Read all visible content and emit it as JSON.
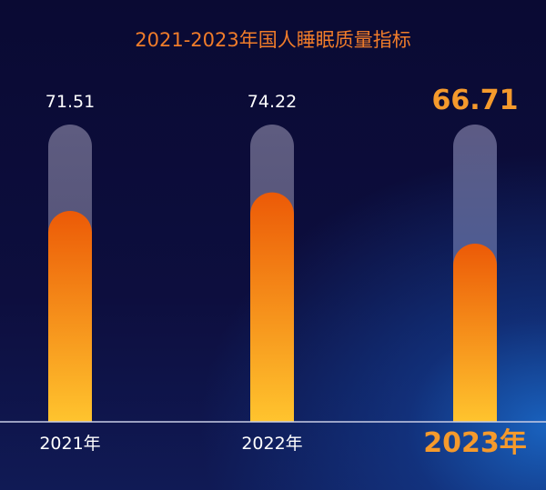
{
  "chart_data": {
    "type": "bar",
    "title": "2021-2023年国人睡眠质量指标",
    "categories": [
      "2021年",
      "2022年",
      "2023年"
    ],
    "values": [
      71.51,
      74.22,
      66.71
    ],
    "value_labels": [
      "71.51",
      "74.22",
      "66.71"
    ],
    "highlight_index": 2,
    "ylim": [
      0,
      100
    ],
    "grid": false,
    "colors": {
      "bar_top": "#ec5a07",
      "bar_bottom": "#ffc42e",
      "track": "#5b5a7c",
      "highlight_text": "#f59a2c",
      "title": "#f07c2a",
      "baseline": "#c9cde6"
    }
  }
}
